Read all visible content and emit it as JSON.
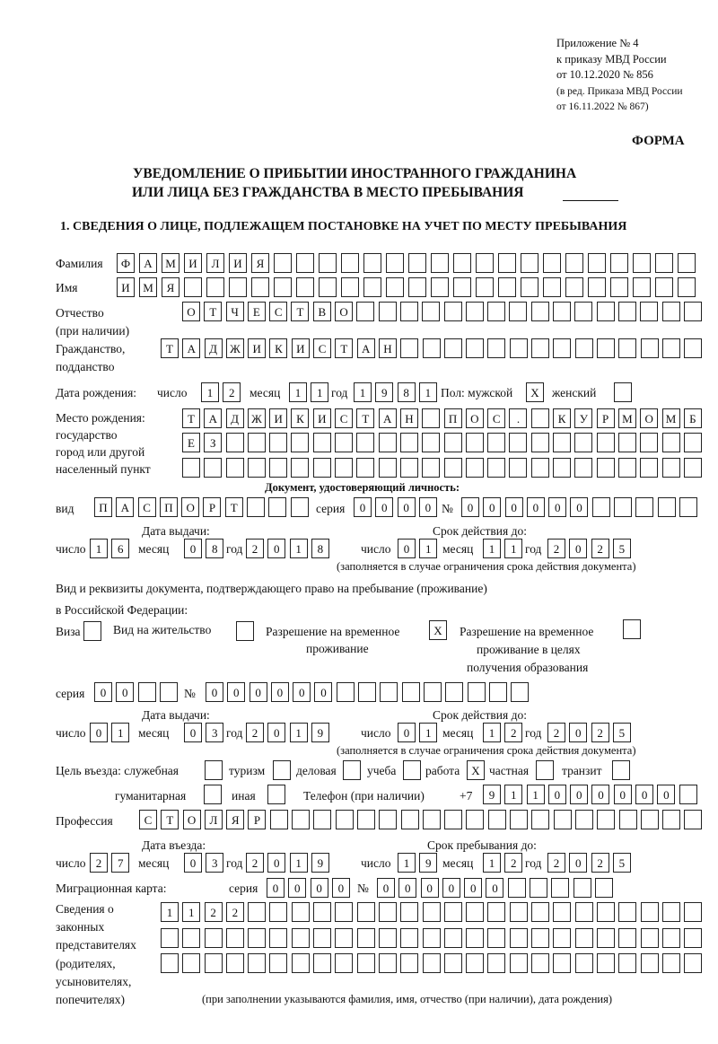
{
  "header": {
    "appendix": "Приложение № 4",
    "order": "к приказу МВД России",
    "order_date": "от 10.12.2020 № 856",
    "revision_1": "(в ред. Приказа МВД России",
    "revision_2": "от 16.11.2022 № 867)",
    "form_label": "ФОРМА",
    "title_1": "УВЕДОМЛЕНИЕ О ПРИБЫТИИ ИНОСТРАННОГО ГРАЖДАНИНА",
    "title_2": "ИЛИ ЛИЦА БЕЗ ГРАЖДАНСТВА В МЕСТО ПРЕБЫВАНИЯ",
    "section_1": "1. СВЕДЕНИЯ О ЛИЦЕ, ПОДЛЕЖАЩЕМ ПОСТАНОВКЕ НА УЧЕТ ПО МЕСТУ ПРЕБЫВАНИЯ"
  },
  "labels": {
    "surname": "Фамилия",
    "name": "Имя",
    "patronymic_1": "Отчество",
    "patronymic_2": "(при наличии)",
    "citizenship_1": "Гражданство,",
    "citizenship_2": "подданство",
    "birth_date": "Дата рождения:",
    "day": "число",
    "month": "месяц",
    "year": "год",
    "sex": "Пол: мужской",
    "female": "женский",
    "birthplace_1": "Место рождения:",
    "birthplace_2": "государство",
    "birthplace_3": "город или другой",
    "birthplace_4": "населенный пункт",
    "id_doc": "Документ, удостоверяющий личность:",
    "kind": "вид",
    "series": "серия",
    "number": "№",
    "issue_date": "Дата выдачи:",
    "valid_until": "Срок действия до:",
    "valid_note": "(заполняется в случае ограничения срока действия документа)",
    "stay_doc_1": "Вид и реквизиты документа, подтверждающего право на пребывание (проживание)",
    "stay_doc_2": "в Российской Федерации:",
    "visa": "Виза",
    "residence": "Вид на жительство",
    "temp_res_1": "Разрешение на временное",
    "temp_res_2": "проживание",
    "temp_edu_1": "Разрешение на временное",
    "temp_edu_2": "проживание в целях",
    "temp_edu_3": "получения образования",
    "purpose": "Цель въезда: служебная",
    "tourism": "туризм",
    "business": "деловая",
    "study": "учеба",
    "work": "работа",
    "private": "частная",
    "transit": "транзит",
    "humanitarian": "гуманитарная",
    "other": "иная",
    "phone": "Телефон (при наличии)",
    "phone_prefix": "+7",
    "profession": "Профессия",
    "entry_date": "Дата въезда:",
    "stay_until": "Срок пребывания до:",
    "migration_card": "Миграционная карта:",
    "reps_1": "Сведения о",
    "reps_2": "законных",
    "reps_3": "представителях",
    "reps_4": "(родителях,",
    "reps_5": "усыновителях,",
    "reps_6": "попечителях)",
    "reps_note": "(при заполнении указываются фамилия, имя, отчество (при наличии), дата рождения)"
  },
  "values": {
    "surname": "ФАМИЛИЯ",
    "name": "ИМЯ",
    "patronymic": "ОТЧЕСТВО",
    "citizenship": "ТАДЖИКИСТАН",
    "birth_day": "12",
    "birth_month": "11",
    "birth_year": "1981",
    "sex_male": "X",
    "sex_female": "",
    "birthplace_1": "ТАДЖИКИСТАН ПОС. КУРМОМБ",
    "birthplace_2": "ЕЗ",
    "birthplace_3": "",
    "id_kind": "ПАСПОРТ",
    "id_series": "0000",
    "id_number": "000000",
    "id_issue_day": "16",
    "id_issue_month": "08",
    "id_issue_year": "2018",
    "id_valid_day": "01",
    "id_valid_month": "11",
    "id_valid_year": "2025",
    "visa": "",
    "residence": "",
    "temp_res": "X",
    "temp_edu": "",
    "stay_series": "00",
    "stay_number": "000000",
    "stay_issue_day": "01",
    "stay_issue_month": "03",
    "stay_issue_year": "2019",
    "stay_valid_day": "01",
    "stay_valid_month": "12",
    "stay_valid_year": "2025",
    "p_service": "",
    "p_tourism": "",
    "p_business": "",
    "p_study": "",
    "p_work": "X",
    "p_private": "",
    "p_transit": "",
    "p_humanitarian": "",
    "p_other": "",
    "phone": "911000000",
    "profession": "СТОЛЯР",
    "entry_day": "27",
    "entry_month": "03",
    "entry_year": "2019",
    "until_day": "19",
    "until_month": "12",
    "until_year": "2025",
    "mc_series": "0000",
    "mc_number": "000000",
    "reps_1": "1122",
    "reps_2": "",
    "reps_3": ""
  }
}
